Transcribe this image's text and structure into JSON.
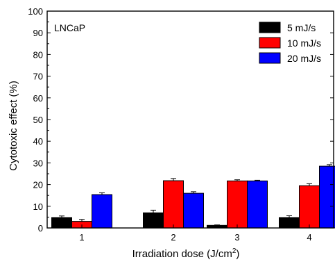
{
  "chart_data": {
    "type": "bar",
    "annotation": "LNCaP",
    "xlabel": "Irradiation dose (J/cm",
    "xlabel_sup": "2",
    "xlabel_end": ")",
    "ylabel": "Cytotoxic effect (%)",
    "ylim": [
      0,
      100
    ],
    "yticks": [
      0,
      10,
      20,
      30,
      40,
      50,
      60,
      70,
      80,
      90,
      100
    ],
    "categories": [
      "1",
      "2",
      "3",
      "4"
    ],
    "legend_position": "top-right",
    "grid": false,
    "series": [
      {
        "name": "5 mJ/s",
        "color": "#000000",
        "values": [
          4.8,
          7.0,
          1.2,
          4.8
        ],
        "errors": [
          0.7,
          1.2,
          0.2,
          0.8
        ]
      },
      {
        "name": "10 mJ/s",
        "color": "#ff0000",
        "values": [
          3.0,
          21.8,
          21.7,
          19.5
        ],
        "errors": [
          0.9,
          1.0,
          0.5,
          0.9
        ]
      },
      {
        "name": "20 mJ/s",
        "color": "#0000ff",
        "values": [
          15.4,
          16.0,
          21.7,
          28.5
        ],
        "errors": [
          0.8,
          0.7,
          0.3,
          0.7
        ]
      }
    ]
  }
}
